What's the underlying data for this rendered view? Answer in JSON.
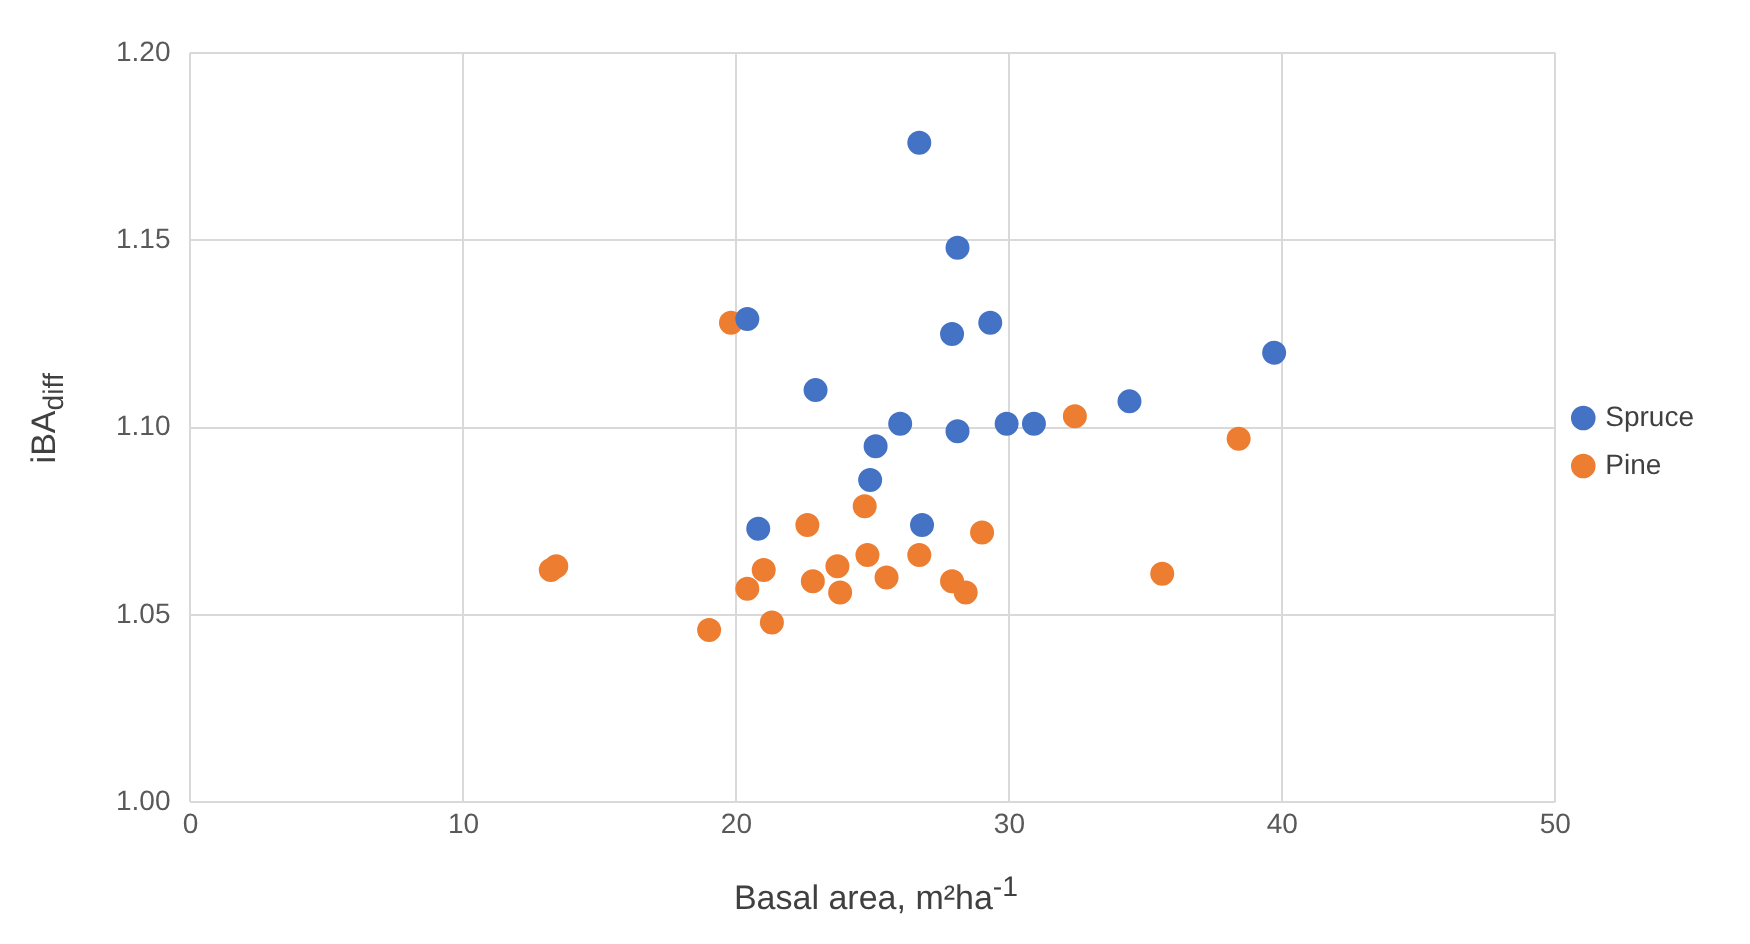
{
  "chart_data": {
    "type": "scatter",
    "xlabel": "Basal area, m²ha$^{-1}$",
    "ylabel": "iBA$_{diff}$",
    "xlim": [
      0,
      50
    ],
    "xticks": [
      0,
      10,
      20,
      30,
      40,
      50
    ],
    "ylim": [
      1.0,
      1.2
    ],
    "yticks": [
      {
        "value": 1.0,
        "label": "1.00"
      },
      {
        "value": 1.05,
        "label": "1.05"
      },
      {
        "value": 1.1,
        "label": "1.10"
      },
      {
        "value": 1.15,
        "label": "1.15"
      },
      {
        "value": 1.2,
        "label": "1.20"
      }
    ],
    "grid": true,
    "legend": "right",
    "marker": "circle",
    "series": [
      {
        "name": "Spruce",
        "color": "#4472c4",
        "x": [
          26.7,
          28.1,
          27.9,
          29.3,
          39.7,
          34.4,
          26.0,
          28.1,
          29.9,
          30.9,
          25.1,
          24.9,
          26.8,
          20.4,
          22.9,
          20.8
        ],
        "values": [
          1.176,
          1.148,
          1.125,
          1.128,
          1.12,
          1.107,
          1.101,
          1.099,
          1.101,
          1.101,
          1.095,
          1.086,
          1.074,
          1.129,
          1.11,
          1.073
        ]
      },
      {
        "name": "Pine",
        "color": "#ed7d31",
        "x": [
          19.8,
          13.4,
          13.2,
          22.6,
          21.0,
          20.4,
          22.8,
          23.7,
          23.8,
          19.0,
          21.3,
          24.7,
          24.8,
          25.5,
          26.7,
          29.0,
          27.9,
          28.4,
          32.4,
          38.4,
          35.6
        ],
        "values": [
          1.128,
          1.063,
          1.062,
          1.074,
          1.062,
          1.057,
          1.059,
          1.063,
          1.056,
          1.046,
          1.048,
          1.079,
          1.066,
          1.06,
          1.066,
          1.072,
          1.059,
          1.056,
          1.103,
          1.097,
          1.061
        ]
      }
    ]
  }
}
